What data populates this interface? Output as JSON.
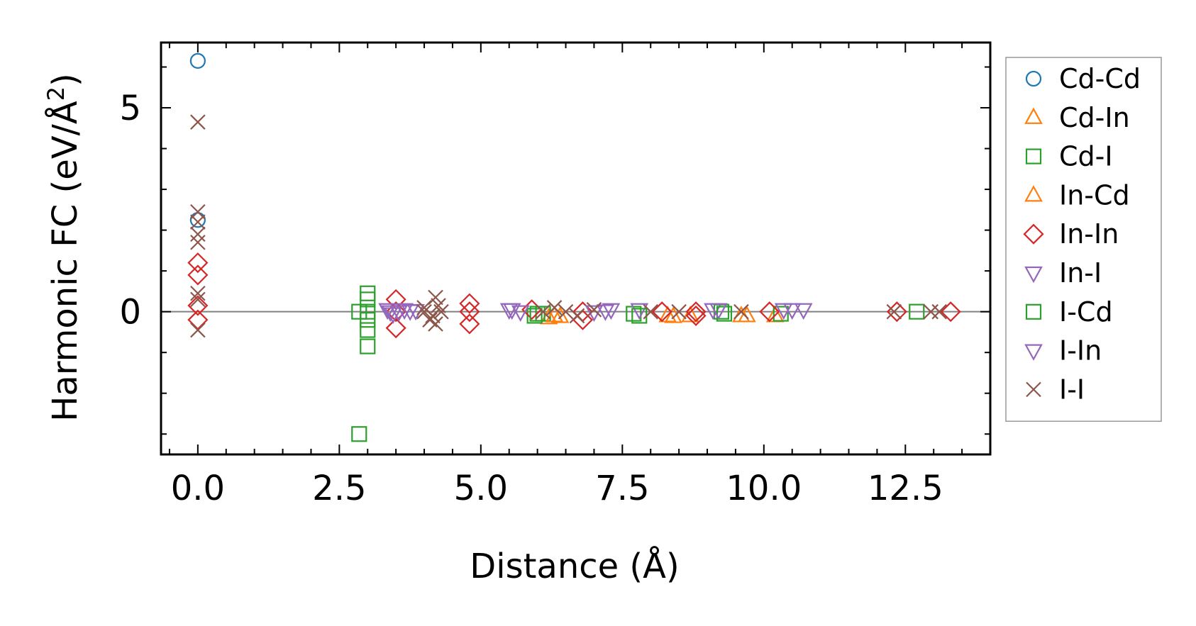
{
  "chart_data": {
    "type": "scatter",
    "xlabel": "Distance (Å)",
    "ylabel_main": "Harmonic FC (eV/Å",
    "ylabel_sup": "2",
    "ylabel_close": ")",
    "xlim": [
      -0.65,
      14.0
    ],
    "ylim": [
      -3.5,
      6.6
    ],
    "x_ticks": [
      0.0,
      2.5,
      5.0,
      7.5,
      10.0,
      12.5
    ],
    "x_tick_labels": [
      "0.0",
      "2.5",
      "5.0",
      "7.5",
      "10.0",
      "12.5"
    ],
    "y_ticks": [
      0,
      5
    ],
    "y_tick_labels": [
      "0",
      "5"
    ],
    "reference_line_y": 0,
    "grid": false,
    "legend_position": "right, outside",
    "series": [
      {
        "name": "Cd-Cd",
        "marker": "circle",
        "color": "#1f77b4",
        "points": [
          [
            0.0,
            6.15
          ],
          [
            0.0,
            2.25
          ]
        ]
      },
      {
        "name": "Cd-In",
        "marker": "triangle-up",
        "color": "#ff7f0e",
        "points": [
          [
            6.2,
            -0.15
          ],
          [
            6.4,
            -0.12
          ],
          [
            8.4,
            -0.12
          ],
          [
            8.7,
            -0.1
          ],
          [
            9.6,
            -0.1
          ],
          [
            10.2,
            -0.1
          ]
        ]
      },
      {
        "name": "Cd-I",
        "marker": "square",
        "color": "#2ca02c",
        "points": [
          [
            2.85,
            -3.0
          ],
          [
            2.85,
            0.0
          ],
          [
            3.0,
            0.45
          ],
          [
            3.0,
            0.3
          ],
          [
            3.0,
            0.0
          ],
          [
            3.0,
            -0.2
          ],
          [
            3.0,
            -0.45
          ],
          [
            3.0,
            -0.85
          ],
          [
            5.95,
            -0.1
          ],
          [
            6.1,
            -0.05
          ],
          [
            7.7,
            -0.05
          ],
          [
            9.25,
            0.0
          ],
          [
            10.3,
            -0.05
          ],
          [
            12.7,
            0.0
          ]
        ]
      },
      {
        "name": "In-Cd",
        "marker": "triangle-up",
        "color": "#ff7f0e",
        "points": [
          [
            6.3,
            -0.1
          ],
          [
            8.3,
            -0.1
          ],
          [
            9.7,
            -0.1
          ]
        ]
      },
      {
        "name": "In-In",
        "marker": "diamond",
        "color": "#d62728",
        "points": [
          [
            0.0,
            1.2
          ],
          [
            0.0,
            0.9
          ],
          [
            0.0,
            0.15
          ],
          [
            0.0,
            -0.2
          ],
          [
            3.5,
            0.3
          ],
          [
            3.5,
            0.0
          ],
          [
            3.5,
            -0.4
          ],
          [
            4.8,
            0.2
          ],
          [
            4.8,
            0.0
          ],
          [
            4.8,
            -0.3
          ],
          [
            5.9,
            0.05
          ],
          [
            6.8,
            0.0
          ],
          [
            6.8,
            -0.2
          ],
          [
            8.2,
            0.0
          ],
          [
            8.8,
            0.0
          ],
          [
            8.8,
            -0.1
          ],
          [
            10.1,
            0.0
          ],
          [
            12.35,
            0.0
          ],
          [
            13.3,
            0.0
          ]
        ]
      },
      {
        "name": "In-I",
        "marker": "triangle-down",
        "color": "#9467bd",
        "points": [
          [
            3.35,
            0.05
          ],
          [
            3.45,
            -0.05
          ],
          [
            3.55,
            0.0
          ],
          [
            3.65,
            0.05
          ],
          [
            3.75,
            0.02
          ],
          [
            3.85,
            0.03
          ],
          [
            5.5,
            0.05
          ],
          [
            5.7,
            0.0
          ],
          [
            7.0,
            0.0
          ],
          [
            7.3,
            0.05
          ],
          [
            7.8,
            0.05
          ],
          [
            9.1,
            0.05
          ],
          [
            10.35,
            0.05
          ],
          [
            10.7,
            0.05
          ]
        ]
      },
      {
        "name": "I-Cd",
        "marker": "square",
        "color": "#2ca02c",
        "points": [
          [
            6.0,
            -0.05
          ],
          [
            7.8,
            -0.1
          ],
          [
            9.3,
            -0.05
          ]
        ]
      },
      {
        "name": "I-In",
        "marker": "triangle-down",
        "color": "#9467bd",
        "points": [
          [
            3.4,
            0.0
          ],
          [
            5.55,
            0.05
          ],
          [
            7.2,
            0.02
          ],
          [
            9.2,
            0.05
          ],
          [
            10.5,
            0.05
          ]
        ]
      },
      {
        "name": "I-I",
        "marker": "x",
        "color": "#8c564b",
        "points": [
          [
            0.0,
            4.65
          ],
          [
            0.0,
            2.45
          ],
          [
            0.0,
            2.2
          ],
          [
            0.0,
            1.9
          ],
          [
            0.0,
            1.7
          ],
          [
            0.0,
            0.45
          ],
          [
            0.0,
            0.3
          ],
          [
            0.0,
            -0.45
          ],
          [
            4.0,
            0.1
          ],
          [
            4.1,
            -0.2
          ],
          [
            4.2,
            0.35
          ],
          [
            4.2,
            -0.3
          ],
          [
            4.3,
            0.0
          ],
          [
            4.0,
            0.0
          ],
          [
            4.25,
            0.15
          ],
          [
            4.15,
            -0.1
          ],
          [
            6.1,
            0.0
          ],
          [
            6.3,
            0.1
          ],
          [
            6.5,
            0.0
          ],
          [
            6.7,
            -0.1
          ],
          [
            7.0,
            0.05
          ],
          [
            8.0,
            0.0
          ],
          [
            8.5,
            0.0
          ],
          [
            9.6,
            0.0
          ],
          [
            12.3,
            0.0
          ],
          [
            12.95,
            0.0
          ],
          [
            13.1,
            0.0
          ]
        ]
      }
    ]
  }
}
